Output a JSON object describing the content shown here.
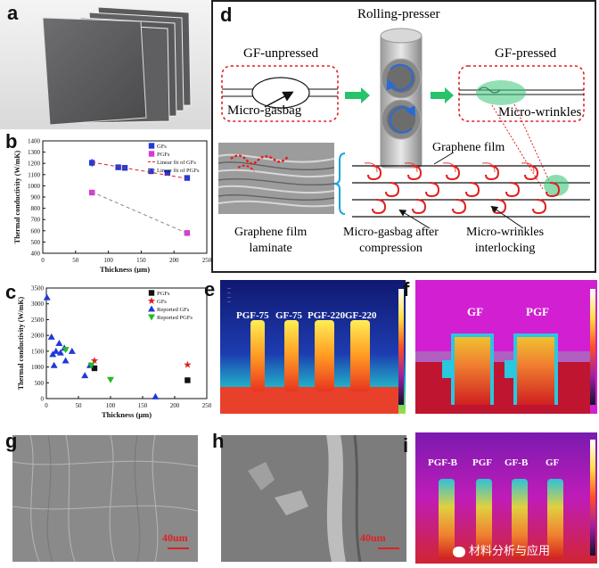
{
  "panels": {
    "a": "a",
    "b": "b",
    "c": "c",
    "d": "d",
    "e": "e",
    "f": "f",
    "g": "g",
    "h": "h",
    "i": "i"
  },
  "schematic": {
    "rolling_presser": "Rolling-presser",
    "gf_unpressed": "GF-unpressed",
    "gf_pressed": "GF-pressed",
    "micro_gasbag": "Micro-gasbag",
    "micro_wrinkles": "Micro-wrinkles",
    "graphene_film": "Graphene film",
    "laminate_line1": "Graphene film",
    "laminate_line2": "laminate",
    "gasbag_compression_line1": "Micro-gasbag after",
    "gasbag_compression_line2": "compression",
    "wrinkle_interlock_line1": "Micro-wrinkles",
    "wrinkle_interlock_line2": "interlocking"
  },
  "ir_labels": {
    "e": [
      "PGF-75",
      "GF-75",
      "PGF-220",
      "GF-220"
    ],
    "f": [
      "GF",
      "PGF"
    ],
    "i": [
      "PGF-B",
      "PGF",
      "GF-B",
      "GF"
    ]
  },
  "scale_bars": {
    "g": "40um",
    "h": "40um"
  },
  "watermark": "材料分析与应用",
  "chart_data": [
    {
      "panel": "b",
      "type": "scatter",
      "xlabel": "Thickness (μm)",
      "ylabel": "Thermal conductivity (W/mK)",
      "xlim": [
        0,
        250
      ],
      "ylim": [
        400,
        1400
      ],
      "xticks": [
        0,
        50,
        100,
        150,
        200,
        250
      ],
      "yticks": [
        400,
        500,
        600,
        700,
        800,
        900,
        1000,
        1100,
        1200,
        1300,
        1400
      ],
      "series": [
        {
          "name": "GFs",
          "color": "#1f3ad6",
          "marker": "square",
          "x": [
            75,
            115,
            125,
            165,
            190,
            220
          ],
          "y": [
            1205,
            1165,
            1160,
            1130,
            1115,
            1070
          ],
          "err": [
            35,
            10,
            10,
            8,
            10,
            10
          ]
        },
        {
          "name": "PGFs",
          "color": "#d63ad6",
          "marker": "square",
          "x": [
            75,
            220
          ],
          "y": [
            940,
            580
          ],
          "err": [
            20,
            10
          ]
        },
        {
          "name": "Linear fit of GFs",
          "color": "#e02020",
          "style": "dash",
          "x": [
            75,
            220
          ],
          "y": [
            1210,
            1065
          ]
        },
        {
          "name": "Linear fit of PGFs",
          "color": "#888888",
          "style": "dash",
          "x": [
            75,
            220
          ],
          "y": [
            945,
            578
          ]
        }
      ]
    },
    {
      "panel": "c",
      "type": "scatter",
      "xlabel": "Thickness (μm)",
      "ylabel": "Thermal conductivity (W/mK)",
      "xlim": [
        0,
        250
      ],
      "ylim": [
        0,
        3500
      ],
      "xticks": [
        0,
        50,
        100,
        150,
        200,
        250
      ],
      "yticks": [
        0,
        500,
        1000,
        1500,
        2000,
        2500,
        3000,
        3500
      ],
      "series": [
        {
          "name": "PGFs",
          "color": "#111111",
          "marker": "square",
          "x": [
            75,
            220
          ],
          "y": [
            960,
            580
          ]
        },
        {
          "name": "GFs",
          "color": "#e02020",
          "marker": "star",
          "x": [
            75,
            220
          ],
          "y": [
            1200,
            1070
          ]
        },
        {
          "name": "Reported GFs",
          "color": "#1f3ad6",
          "marker": "triangle-up",
          "x": [
            1,
            8,
            10,
            12,
            15,
            20,
            22,
            28,
            30,
            40,
            60,
            68,
            170
          ],
          "y": [
            3200,
            1950,
            1400,
            1050,
            1500,
            1750,
            1450,
            1600,
            1200,
            1500,
            730,
            1050,
            60
          ]
        },
        {
          "name": "Reported PGFs",
          "color": "#22bb22",
          "marker": "triangle-down",
          "x": [
            30,
            70,
            100
          ],
          "y": [
            1550,
            1050,
            600
          ]
        }
      ]
    }
  ]
}
